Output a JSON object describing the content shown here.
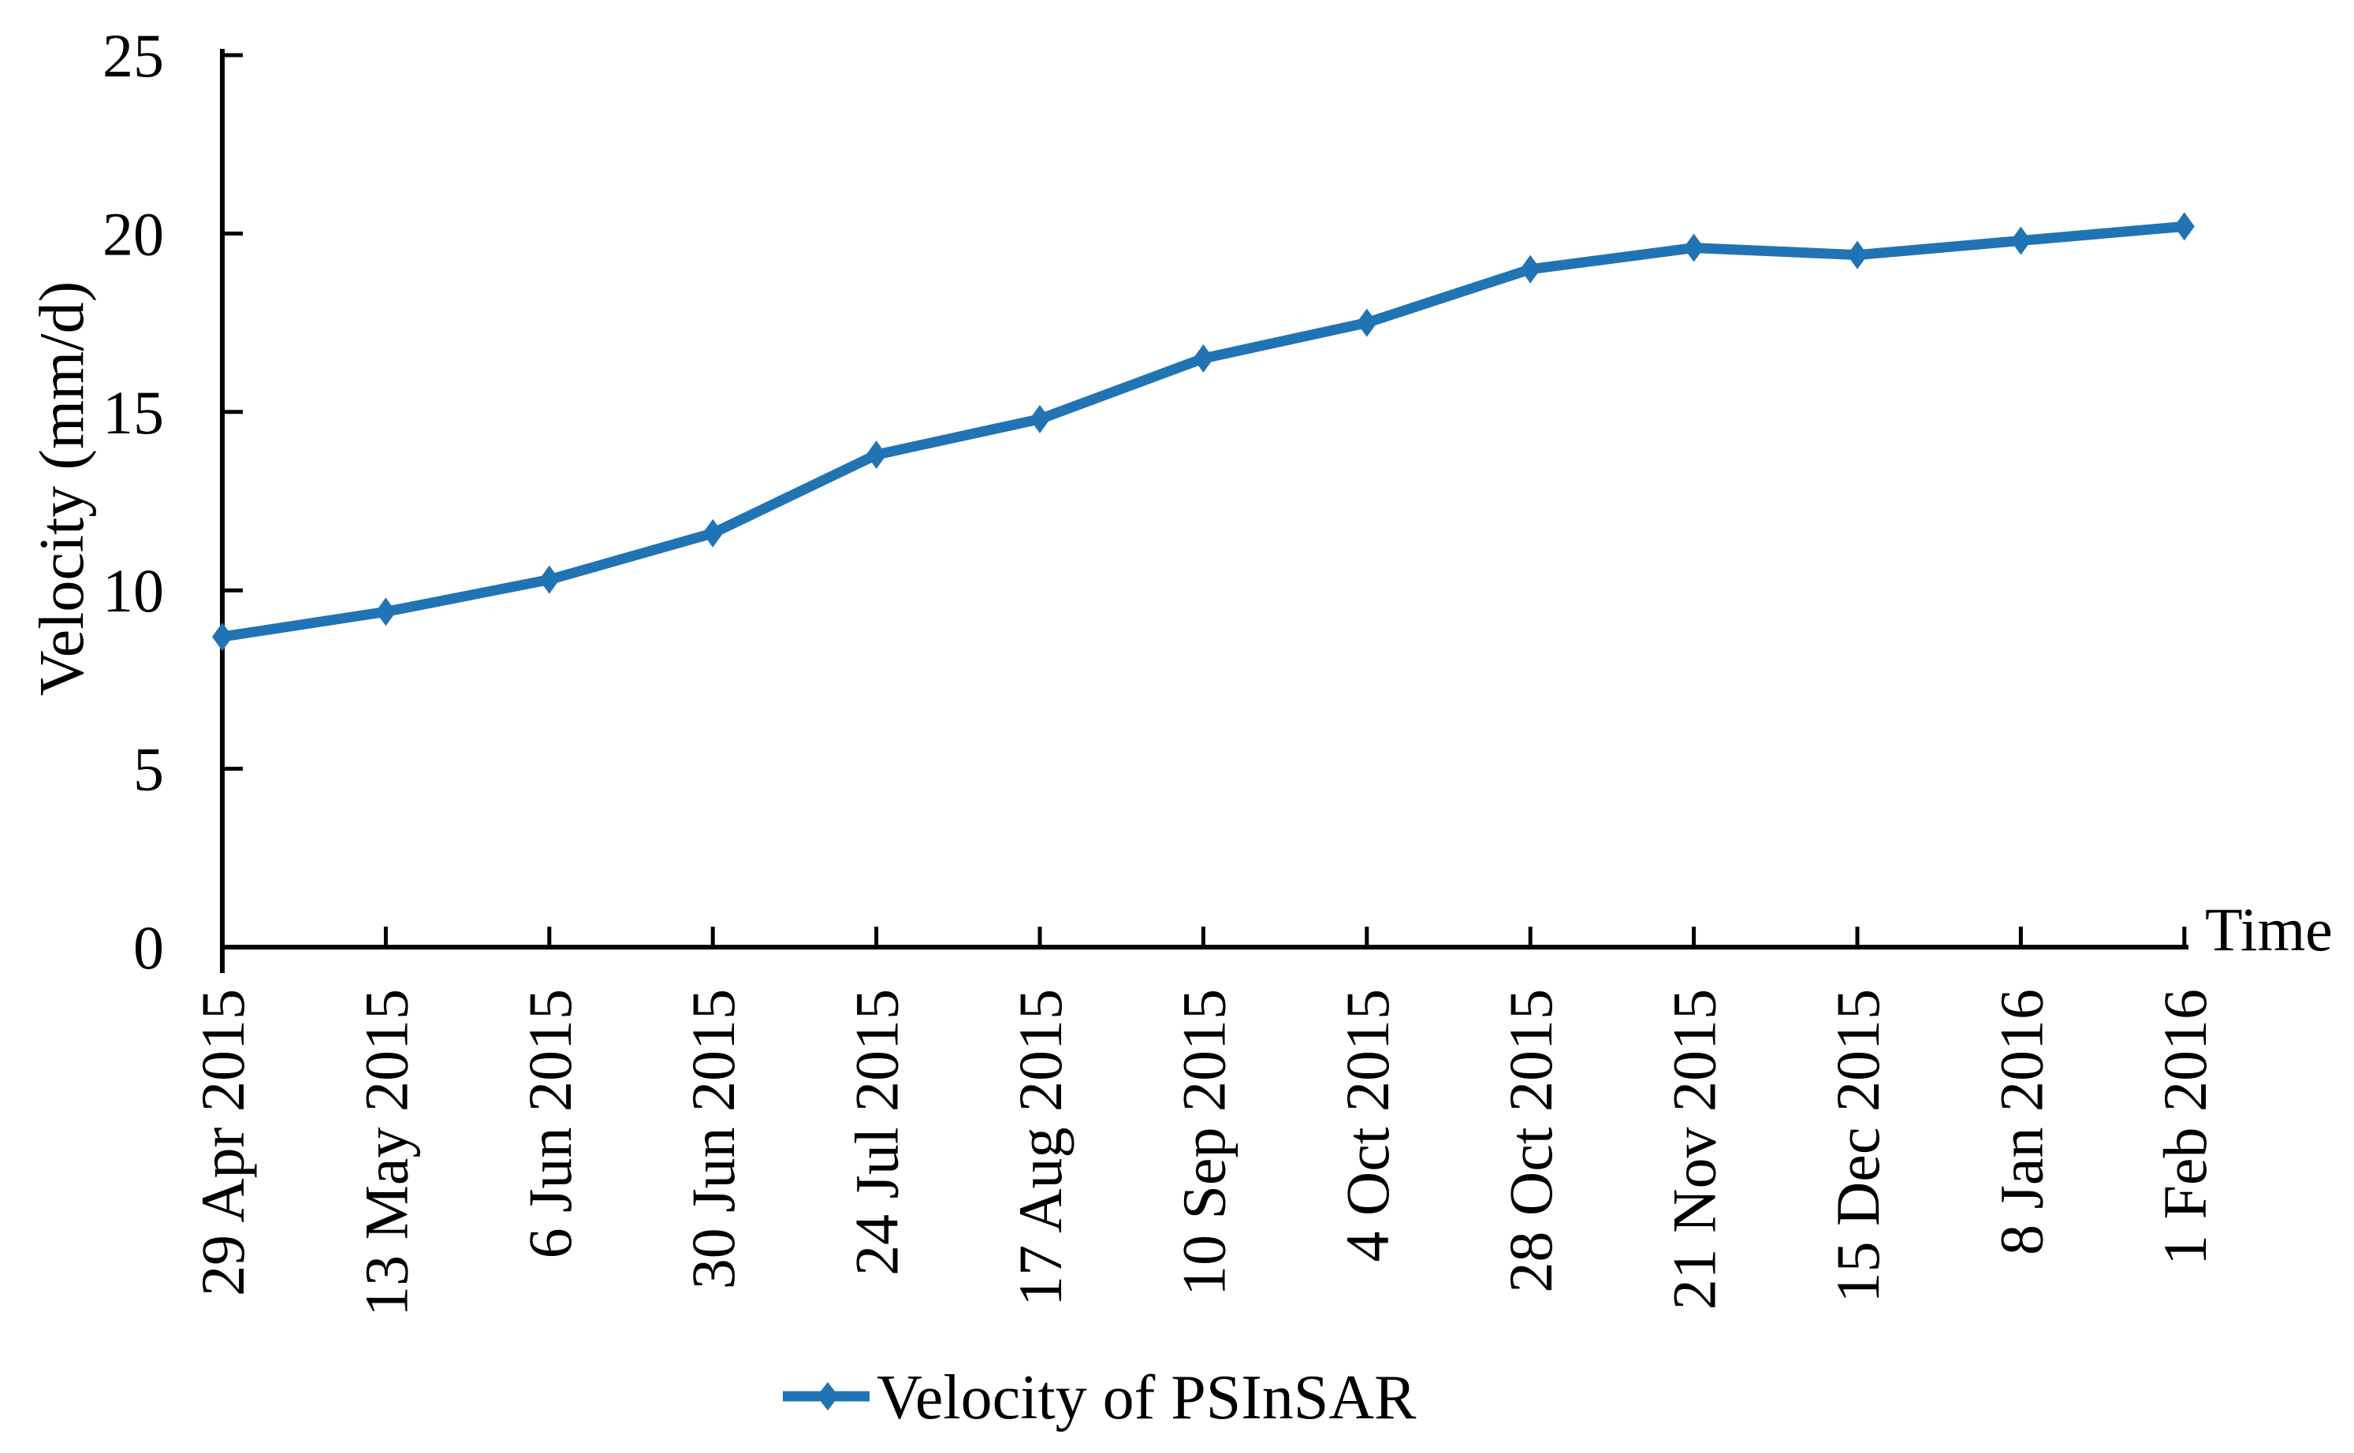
{
  "chart_data": {
    "type": "line",
    "title": "",
    "xlabel": "Time",
    "ylabel": "Velocity (mm/d)",
    "categories": [
      "29 Apr 2015",
      "13 May 2015",
      "6 Jun 2015",
      "30 Jun 2015",
      "24 Jul 2015",
      "17 Aug 2015",
      "10 Sep 2015",
      "4 Oct 2015",
      "28 Oct 2015",
      "21 Nov 2015",
      "15 Dec 2015",
      "8 Jan 2016",
      "1 Feb 2016"
    ],
    "series": [
      {
        "name": "Velocity of PSInSAR",
        "values": [
          8.7,
          9.4,
          10.3,
          11.6,
          13.8,
          14.8,
          16.5,
          17.5,
          19.0,
          19.6,
          19.4,
          19.8,
          20.2
        ]
      }
    ],
    "ylim": [
      0,
      25
    ],
    "yticks": [
      0,
      5,
      10,
      15,
      20,
      25
    ],
    "line_color": "#2174B4",
    "axis_color": "#000000",
    "marker": "diamond",
    "legend_position": "bottom",
    "grid": false
  }
}
